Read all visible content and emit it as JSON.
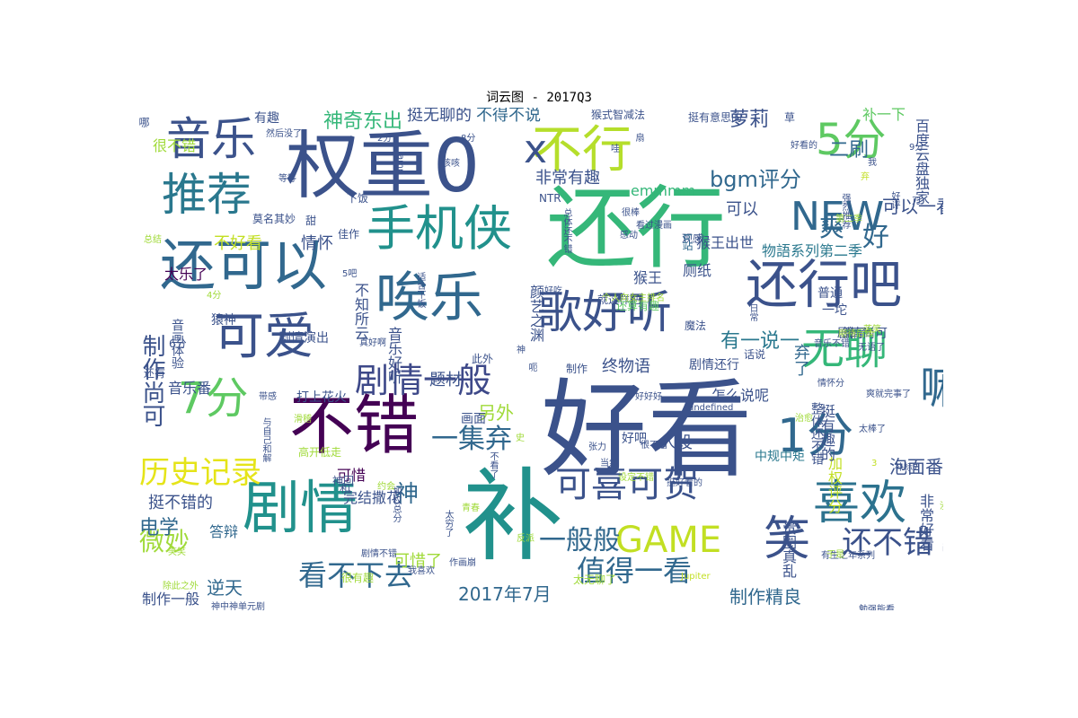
{
  "chart_data": {
    "type": "wordcloud",
    "title": "词云图 - 2017Q3",
    "words": [
      {
        "text": "好看",
        "weight": 100,
        "color": "#3b528b"
      },
      {
        "text": "补",
        "weight": 92,
        "color": "#21918c"
      },
      {
        "text": "还行",
        "weight": 88,
        "color": "#35b779"
      },
      {
        "text": "权重0",
        "weight": 84,
        "color": "#3b528b"
      },
      {
        "text": "不错",
        "weight": 70,
        "color": "#440154"
      },
      {
        "text": "剧情",
        "weight": 64,
        "color": "#21918c"
      },
      {
        "text": "唉乐",
        "weight": 62,
        "color": "#31688e"
      },
      {
        "text": "还可以",
        "weight": 60,
        "color": "#31688e"
      },
      {
        "text": "还行吧",
        "weight": 52,
        "color": "#3b528b"
      },
      {
        "text": "1分",
        "weight": 52,
        "color": "#31688e"
      },
      {
        "text": "喜欢",
        "weight": 52,
        "color": "#2c728e"
      },
      {
        "text": "不行",
        "weight": 50,
        "color": "#b5de2b"
      },
      {
        "text": "可爱",
        "weight": 50,
        "color": "#3b528b"
      },
      {
        "text": "手机侠",
        "weight": 48,
        "color": "#21918c"
      },
      {
        "text": "歌好听",
        "weight": 46,
        "color": "#3b528b"
      },
      {
        "text": "推荐",
        "weight": 46,
        "color": "#2a788e"
      },
      {
        "text": "笑",
        "weight": 46,
        "color": "#3b528b"
      },
      {
        "text": "嘛",
        "weight": 46,
        "color": "#31688e"
      },
      {
        "text": "音乐",
        "weight": 44,
        "color": "#3b528b"
      },
      {
        "text": "5分",
        "weight": 44,
        "color": "#5ec962"
      },
      {
        "text": "7分",
        "weight": 44,
        "color": "#5ec962"
      },
      {
        "text": "无聊",
        "weight": 44,
        "color": "#35b779"
      },
      {
        "text": "NEW",
        "weight": 42,
        "color": "#31688e"
      },
      {
        "text": "x",
        "weight": 40,
        "color": "#3b528b"
      },
      {
        "text": "GAME",
        "weight": 36,
        "color": "#c2df23"
      },
      {
        "text": "可喜可贺",
        "weight": 34,
        "color": "#3b528b"
      },
      {
        "text": "剧情一般",
        "weight": 34,
        "color": "#3e4989"
      },
      {
        "text": "历史记录",
        "weight": 32,
        "color": "#e5e419"
      },
      {
        "text": "还不错",
        "weight": 32,
        "color": "#3b528b"
      },
      {
        "text": "值得一看",
        "weight": 30,
        "color": "#31688e"
      },
      {
        "text": "看不下去",
        "weight": 28,
        "color": "#31688e"
      },
      {
        "text": "一般般",
        "weight": 28,
        "color": "#31688e"
      },
      {
        "text": "一集弃",
        "weight": 28,
        "color": "#31688e"
      },
      {
        "text": "制作尚可",
        "weight": 26,
        "color": "#3b528b"
      },
      {
        "text": "微妙",
        "weight": 26,
        "color": "#a0da39"
      },
      {
        "text": "神",
        "weight": 26,
        "color": "#31688e"
      },
      {
        "text": "爽",
        "weight": 26,
        "color": "#31688e"
      },
      {
        "text": "好",
        "weight": 26,
        "color": "#31688e"
      },
      {
        "text": "有一说一",
        "weight": 22,
        "color": "#2a788e"
      },
      {
        "text": "bgm评分",
        "weight": 22,
        "color": "#31688e"
      },
      {
        "text": "2017年7月",
        "weight": 22,
        "color": "#31688e"
      },
      {
        "text": "神奇东出",
        "weight": 20,
        "color": "#35b779"
      },
      {
        "text": "萝莉",
        "weight": 20,
        "color": "#3b528b"
      },
      {
        "text": "电学",
        "weight": 20,
        "color": "#31688e"
      },
      {
        "text": "二刷",
        "weight": 20,
        "color": "#31688e"
      },
      {
        "text": "泡面番",
        "weight": 18,
        "color": "#3b528b"
      },
      {
        "text": "逆天",
        "weight": 18,
        "color": "#31688e"
      },
      {
        "text": "制作精良",
        "weight": 18,
        "color": "#31688e"
      },
      {
        "text": "另外",
        "weight": 18,
        "color": "#a0da39"
      },
      {
        "text": "可以一看",
        "weight": 18,
        "color": "#3b528b"
      },
      {
        "text": "不得不说",
        "weight": 16,
        "color": "#31688e"
      },
      {
        "text": "挺无聊的",
        "weight": 16,
        "color": "#3b528b"
      },
      {
        "text": "非常有趣",
        "weight": 16,
        "color": "#3b528b"
      },
      {
        "text": "可以",
        "weight": 16,
        "color": "#3b528b"
      },
      {
        "text": "不好看",
        "weight": 16,
        "color": "#c2df23"
      },
      {
        "text": "情怀",
        "weight": 16,
        "color": "#3b528b"
      },
      {
        "text": "终物语",
        "weight": 16,
        "color": "#3b528b"
      },
      {
        "text": "弃了",
        "weight": 16,
        "color": "#31688e"
      },
      {
        "text": "题材",
        "weight": 16,
        "color": "#3b528b"
      },
      {
        "text": "人设",
        "weight": 16,
        "color": "#3b528b"
      },
      {
        "text": "挺不错的",
        "weight": 16,
        "color": "#3b528b"
      },
      {
        "text": "可惜了",
        "weight": 16,
        "color": "#a0da39"
      },
      {
        "text": "制作一般",
        "weight": 14,
        "color": "#3b528b"
      },
      {
        "text": "物語系列第二季",
        "weight": 14,
        "color": "#2a788e"
      },
      {
        "text": "猴王出世",
        "weight": 14,
        "color": "#3b528b"
      },
      {
        "text": "emmmm",
        "weight": 14,
        "color": "#35b779"
      },
      {
        "text": "厕纸",
        "weight": 14,
        "color": "#3b528b"
      },
      {
        "text": "猴王",
        "weight": 14,
        "color": "#3b528b"
      },
      {
        "text": "太乐了",
        "weight": 14,
        "color": "#440154"
      },
      {
        "text": "音乐番",
        "weight": 14,
        "color": "#3b528b"
      },
      {
        "text": "可惜",
        "weight": 14,
        "color": "#440154"
      },
      {
        "text": "完结撒花",
        "weight": 14,
        "color": "#3b528b"
      },
      {
        "text": "中规中矩",
        "weight": 14,
        "color": "#2a788e"
      },
      {
        "text": "答辩",
        "weight": 14,
        "color": "#31688e"
      },
      {
        "text": "怎么说呢",
        "weight": 14,
        "color": "#3b528b"
      },
      {
        "text": "剧情还行",
        "weight": 12,
        "color": "#3b528b"
      },
      {
        "text": "剧情尚可",
        "weight": 12,
        "color": "#3b528b"
      },
      {
        "text": "有趣",
        "weight": 12,
        "color": "#3b528b"
      },
      {
        "text": "补一下",
        "weight": 12,
        "color": "#5ec962"
      },
      {
        "text": "普通",
        "weight": 12,
        "color": "#3b528b"
      },
      {
        "text": "算了",
        "weight": 12,
        "color": "#3b528b"
      },
      {
        "text": "好吧",
        "weight": 12,
        "color": "#3b528b"
      },
      {
        "text": "画面",
        "weight": 12,
        "color": "#3b528b"
      },
      {
        "text": "猿神",
        "weight": 12,
        "color": "#3b528b"
      },
      {
        "text": "神回",
        "weight": 10,
        "color": "#3b528b"
      },
      {
        "text": "下饭",
        "weight": 10,
        "color": "#3b528b"
      },
      {
        "text": "NTR",
        "weight": 10,
        "color": "#3b528b"
      },
      {
        "text": "甜",
        "weight": 10,
        "color": "#3b528b"
      },
      {
        "text": "6分",
        "weight": 10,
        "color": "#3b528b"
      },
      {
        "text": "和",
        "weight": 10,
        "color": "#3b528b"
      },
      {
        "text": "神中神单元剧",
        "weight": 10,
        "color": "#3b528b"
      },
      {
        "text": "魔法",
        "weight": 10,
        "color": "#3b528b"
      },
      {
        "text": "就这样吧",
        "weight": 10,
        "color": "#3b528b"
      },
      {
        "text": "还算有趣",
        "weight": 10,
        "color": "#5ec962"
      },
      {
        "text": "观感",
        "weight": 10,
        "color": "#3b528b"
      },
      {
        "text": "b站",
        "weight": 10,
        "color": "#31688e"
      },
      {
        "text": "太无聊了",
        "weight": 10,
        "color": "#a0da39"
      },
      {
        "text": "佳作",
        "weight": 10,
        "color": "#3b528b"
      },
      {
        "text": "莫名其妙",
        "weight": 10,
        "color": "#3b528b"
      },
      {
        "text": "挺有意思的",
        "weight": 10,
        "color": "#3b528b"
      },
      {
        "text": "猴式智减法",
        "weight": 10,
        "color": "#3b528b"
      },
      {
        "text": "此外",
        "weight": 10,
        "color": "#3b528b"
      },
      {
        "text": "制作",
        "weight": 10,
        "color": "#3b528b"
      },
      {
        "text": "忍野扇",
        "weight": 9,
        "color": "#3b528b"
      },
      {
        "text": "很棒",
        "weight": 9,
        "color": "#3b528b"
      },
      {
        "text": "undefined",
        "weight": 9,
        "color": "#3b528b"
      },
      {
        "text": "剧情不错",
        "weight": 9,
        "color": "#3b528b"
      },
      {
        "text": "音乐不错",
        "weight": 9,
        "color": "#3b528b"
      },
      {
        "text": "好看的",
        "weight": 9,
        "color": "#3b528b"
      },
      {
        "text": "哇",
        "weight": 9,
        "color": "#3b528b"
      },
      {
        "text": "草",
        "weight": 9,
        "color": "#3b528b"
      },
      {
        "text": "话说",
        "weight": 9,
        "color": "#3b528b"
      },
      {
        "text": "还有",
        "weight": 9,
        "color": "#3b528b"
      },
      {
        "text": "很有趣",
        "weight": 9,
        "color": "#a0da39"
      },
      {
        "text": "高开低走",
        "weight": 9,
        "color": "#a0da39"
      },
      {
        "text": "设定不错",
        "weight": 8,
        "color": "#a0da39"
      },
      {
        "text": "有生之年系列",
        "weight": 8,
        "color": "#3b528b"
      },
      {
        "text": "勉强能看",
        "weight": 8,
        "color": "#3b528b"
      },
      {
        "text": "我喜欢",
        "weight": 8,
        "color": "#3b528b"
      },
      {
        "text": "好好好",
        "weight": 8,
        "color": "#3b528b"
      },
      {
        "text": "情怀分",
        "weight": 8,
        "color": "#3b528b"
      },
      {
        "text": "感动",
        "weight": 8,
        "color": "#3b528b"
      },
      {
        "text": "然后没了",
        "weight": 8,
        "color": "#3b528b"
      },
      {
        "text": "等等",
        "weight": 8,
        "color": "#3b528b"
      },
      {
        "text": "咳咳",
        "weight": 8,
        "color": "#3b528b"
      },
      {
        "text": "Jupiter",
        "weight": 8,
        "color": "#c2df23"
      },
      {
        "text": "加权总分",
        "weight": 8,
        "color": "#3b528b"
      },
      {
        "text": "青春",
        "weight": 8,
        "color": "#a0da39"
      },
      {
        "text": "反派",
        "weight": 8,
        "color": "#a0da39"
      },
      {
        "text": "笑笑",
        "weight": 8,
        "color": "#a0da39"
      },
      {
        "text": "除此之外",
        "weight": 8,
        "color": "#a0da39"
      },
      {
        "text": "总结",
        "weight": 8,
        "color": "#a0da39"
      },
      {
        "text": "治愈",
        "weight": 8,
        "color": "#a0da39"
      },
      {
        "text": "苦笑",
        "weight": 8,
        "color": "#a0da39"
      },
      {
        "text": "无语了",
        "weight": 8,
        "color": "#3b528b"
      },
      {
        "text": "日常",
        "weight": 8,
        "color": "#3b528b"
      },
      {
        "text": "张力",
        "weight": 8,
        "color": "#3b528b"
      },
      {
        "text": "当然",
        "weight": 8,
        "color": "#3b528b"
      },
      {
        "text": "约会",
        "weight": 8,
        "color": "#a0da39"
      },
      {
        "text": "作画崩",
        "weight": 8,
        "color": "#3b528b"
      },
      {
        "text": "太穷了",
        "weight": 8,
        "color": "#3b528b"
      },
      {
        "text": "漫改",
        "weight": 8,
        "color": "#a0da39"
      },
      {
        "text": "于是",
        "weight": 8,
        "color": "#a0da39"
      },
      {
        "text": "很不错",
        "weight": 8,
        "color": "#3b528b"
      },
      {
        "text": "期待后续",
        "weight": 8,
        "color": "#a0da39"
      },
      {
        "text": "强烈推荐",
        "weight": 8,
        "color": "#3b528b"
      },
      {
        "text": "第二季",
        "weight": 8,
        "color": "#a0da39"
      },
      {
        "text": "看过漫画",
        "weight": 8,
        "color": "#3b528b"
      },
      {
        "text": "个人向女主排名",
        "weight": 8,
        "color": "#a0da39"
      },
      {
        "text": "爽就完事了",
        "weight": 8,
        "color": "#3b528b"
      },
      {
        "text": "太棒了",
        "weight": 8,
        "color": "#3b528b"
      },
      {
        "text": "补标7",
        "weight": 8,
        "color": "#3b528b"
      },
      {
        "text": "画风不错",
        "weight": 8,
        "color": "#3b528b"
      },
      {
        "text": "我",
        "weight": 8,
        "color": "#3b528b"
      },
      {
        "text": "刀",
        "weight": 8,
        "color": "#3b528b"
      },
      {
        "text": "弃",
        "weight": 8,
        "color": "#c2df23"
      },
      {
        "text": "扇",
        "weight": 8,
        "color": "#3b528b"
      },
      {
        "text": "好吃",
        "weight": 8,
        "color": "#3b528b"
      },
      {
        "text": "2分",
        "weight": 8,
        "color": "#3b528b"
      },
      {
        "text": "8分",
        "weight": 8,
        "color": "#3b528b"
      },
      {
        "text": "amp",
        "weight": 8,
        "color": "#3b528b"
      },
      {
        "text": "3",
        "weight": 8,
        "color": "#c2df23"
      },
      {
        "text": "9分",
        "weight": 8,
        "color": "#3b528b"
      },
      {
        "text": "4分",
        "weight": 8,
        "color": "#a0da39"
      },
      {
        "text": "5吧",
        "weight": 8,
        "color": "#3b528b"
      },
      {
        "text": "好评",
        "weight": 8,
        "color": "#3b528b"
      },
      {
        "text": "滑稽",
        "weight": 8,
        "color": "#a0da39"
      },
      {
        "text": "带感",
        "weight": 8,
        "color": "#3b528b"
      },
      {
        "text": "真好啊",
        "weight": 8,
        "color": "#3b528b"
      },
      {
        "text": "神",
        "weight": 8,
        "color": "#3b528b"
      },
      {
        "text": "史",
        "weight": 8,
        "color": "#a0da39"
      },
      {
        "text": "哪",
        "weight": 8,
        "color": "#3b528b"
      },
      {
        "text": "百度云盘独家",
        "weight": 10,
        "color": "#3b528b"
      },
      {
        "text": "思想深度",
        "weight": 10,
        "color": "#3b528b"
      },
      {
        "text": "非常好看",
        "weight": 14,
        "color": "#3b528b"
      },
      {
        "text": "贵圈真乱",
        "weight": 14,
        "color": "#3b528b"
      },
      {
        "text": "加权评分",
        "weight": 14,
        "color": "#c2df23"
      },
      {
        "text": "挺有趣的",
        "weight": 14,
        "color": "#3b528b"
      },
      {
        "text": "整体还不错",
        "weight": 12,
        "color": "#3b528b"
      },
      {
        "text": "颜艺之渊",
        "weight": 14,
        "color": "#3b528b"
      },
      {
        "text": "不知所云",
        "weight": 14,
        "color": "#3b528b"
      },
      {
        "text": "剧情演出",
        "weight": 14,
        "color": "#3b528b"
      },
      {
        "text": "音画体验",
        "weight": 12,
        "color": "#3b528b"
      },
      {
        "text": "音乐好听",
        "weight": 12,
        "color": "#3b528b"
      },
      {
        "text": "打上花火",
        "weight": 12,
        "color": "#3b528b"
      },
      {
        "text": "一坨",
        "weight": 12,
        "color": "#3b528b"
      },
      {
        "text": "呃",
        "weight": 12,
        "color": "#3b528b"
      },
      {
        "text": "不看了",
        "weight": 8,
        "color": "#3b528b"
      },
      {
        "text": "适合下饭",
        "weight": 8,
        "color": "#3b528b"
      },
      {
        "text": "总体还不错",
        "weight": 8,
        "color": "#3b528b"
      },
      {
        "text": "中愛大乱斗",
        "weight": 8,
        "color": "#3b528b"
      },
      {
        "text": "我看懂了吗",
        "weight": 8,
        "color": "#3b528b"
      },
      {
        "text": "与自己和解",
        "weight": 8,
        "color": "#3b528b"
      },
      {
        "text": "挺好看的",
        "weight": 8,
        "color": "#3b528b"
      },
      {
        "text": "很不错",
        "weight": 8,
        "color": "#a0da39"
      },
      {
        "text": "口",
        "weight": 14,
        "color": "#3b528b"
      }
    ]
  }
}
